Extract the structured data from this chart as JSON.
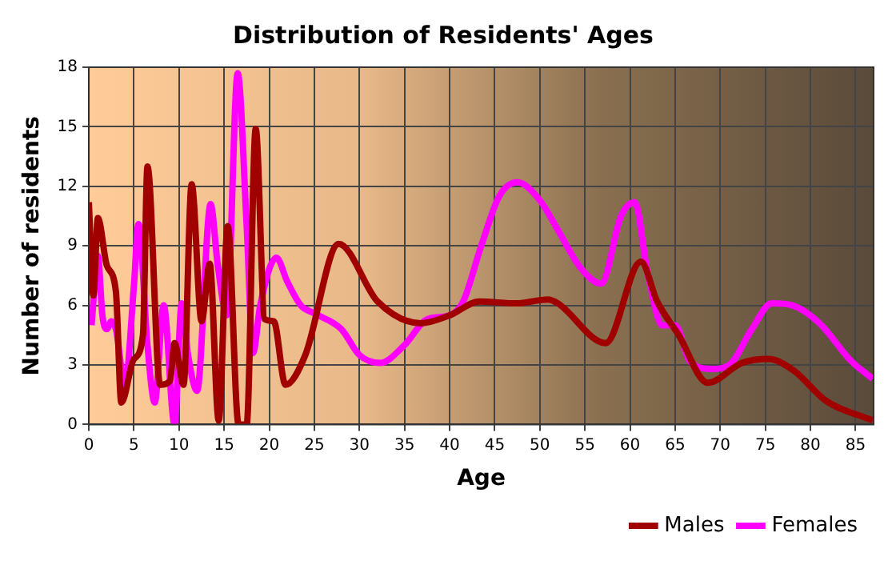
{
  "chart_data": {
    "type": "line",
    "title": "Distribution of Residents' Ages",
    "xlabel": "Age",
    "ylabel": "Number of residents",
    "xlim": [
      0,
      87
    ],
    "xticks": [
      0,
      5,
      10,
      15,
      20,
      25,
      30,
      35,
      40,
      45,
      50,
      55,
      60,
      65,
      70,
      75,
      80,
      85
    ],
    "ylim": [
      0,
      18
    ],
    "yticks": [
      0,
      3,
      6,
      9,
      12,
      15,
      18
    ],
    "grid": true,
    "legend": "bottom right",
    "marker": "none",
    "line_style": "solid",
    "series": [
      {
        "name": "Males",
        "color": "#a00000",
        "x": [
          0,
          0.5,
          1,
          2,
          3,
          3.6,
          5,
          6,
          6.5,
          7.9,
          9,
          9.5,
          10.5,
          11.4,
          12.5,
          13.4,
          14.4,
          15.4,
          16.6,
          17.5,
          18.5,
          19.5,
          20.5,
          21.8,
          24,
          27.7,
          32,
          36.8,
          40,
          43.3,
          47.4,
          50.9,
          52,
          57.3,
          61.2,
          63,
          65.4,
          68.6,
          72.4,
          75.3,
          78.2,
          81.7,
          86.9
        ],
        "values": [
          11.2,
          6.5,
          10.4,
          8,
          6.7,
          1.1,
          3.3,
          4.5,
          13,
          2,
          2.2,
          4.1,
          2,
          12.1,
          5.2,
          8.1,
          0.2,
          10,
          0,
          0,
          14.9,
          5.3,
          5.2,
          2,
          3.5,
          9.1,
          6.2,
          5.1,
          5.5,
          6.2,
          6.1,
          6.3,
          6.1,
          4.1,
          8.2,
          6.2,
          4.5,
          2.1,
          3.1,
          3.3,
          2.7,
          1.2,
          0.2
        ]
      },
      {
        "name": "Females",
        "color": "#ff00ff",
        "x": [
          0.3,
          1,
          1.5,
          2,
          2.5,
          3,
          4,
          5,
          5.5,
          6.5,
          7.3,
          8.3,
          9.5,
          10.3,
          11,
          12,
          13.5,
          14.3,
          15.3,
          16.5,
          17.5,
          18.2,
          19,
          20.8,
          22,
          23.5,
          25,
          28,
          30,
          32.3,
          35,
          37.5,
          40,
          41.5,
          43.5,
          45.5,
          47.5,
          50,
          52,
          54.5,
          56.8,
          59,
          60.5,
          62,
          63.6,
          65,
          66.6,
          69,
          71,
          73.5,
          75.7,
          78,
          81,
          84.5,
          86.9
        ],
        "values": [
          5,
          8.5,
          5.5,
          4.8,
          5.2,
          4.8,
          2,
          7,
          10.1,
          4,
          1.1,
          6,
          0,
          6.1,
          3.5,
          1.7,
          11.1,
          8,
          5.5,
          17.7,
          10,
          3.6,
          6,
          8.4,
          7.2,
          6,
          5.6,
          4.8,
          3.5,
          3.1,
          4,
          5.3,
          5.5,
          6.2,
          9,
          11.5,
          12.2,
          11.3,
          9.8,
          7.9,
          7.1,
          10.5,
          11.2,
          7.5,
          5,
          5,
          3.2,
          2.8,
          3,
          4.8,
          6.1,
          6,
          5.1,
          3.2,
          2.3
        ]
      }
    ]
  }
}
